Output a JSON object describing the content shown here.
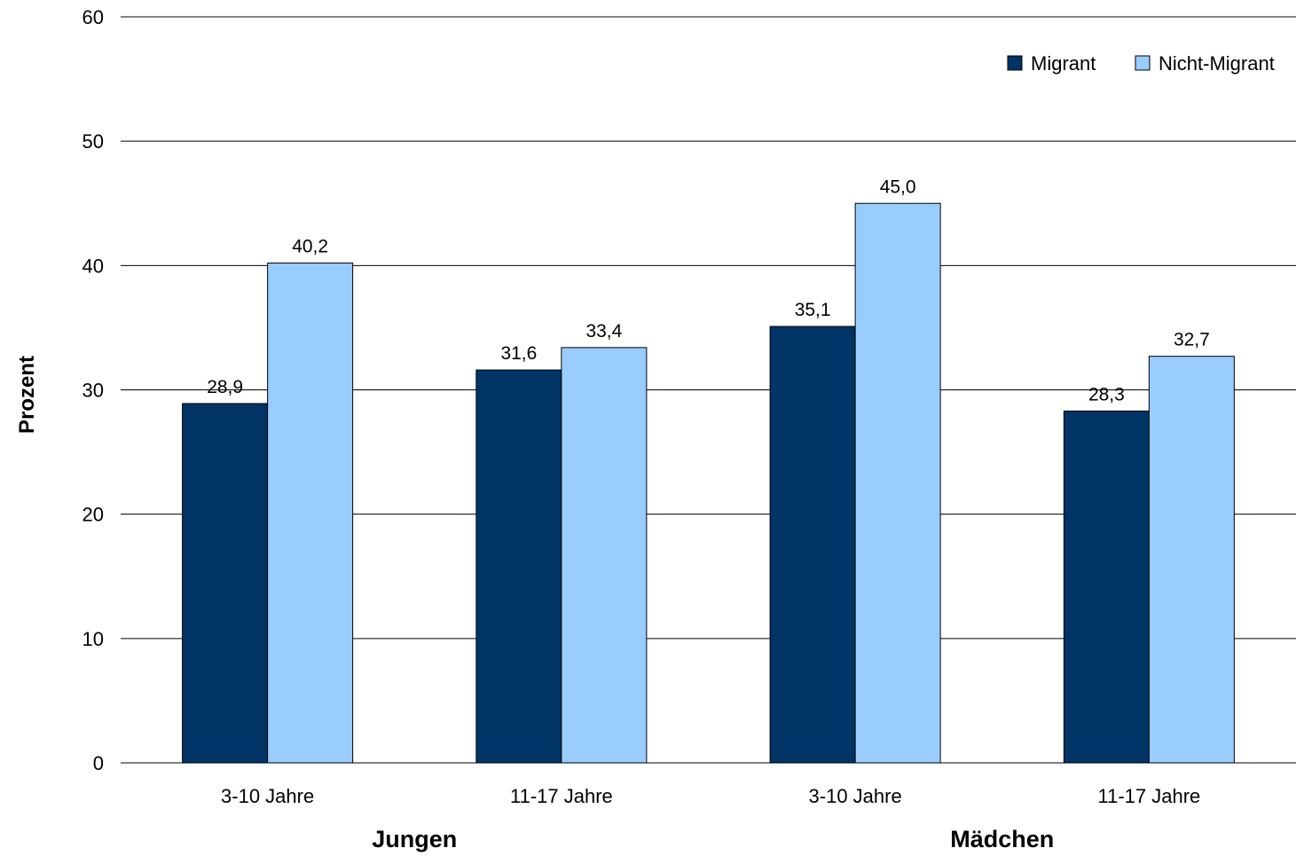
{
  "chart_data": {
    "type": "bar",
    "categories": [
      "3-10 Jahre",
      "11-17 Jahre",
      "3-10 Jahre",
      "11-17 Jahre"
    ],
    "groups": [
      {
        "label": "Jungen",
        "categories": [
          0,
          1
        ]
      },
      {
        "label": "Mädchen",
        "categories": [
          2,
          3
        ]
      }
    ],
    "series": [
      {
        "name": "Migrant",
        "values": [
          28.9,
          31.6,
          35.1,
          28.3
        ],
        "labels": [
          "28,9",
          "31,6",
          "35,1",
          "28,3"
        ],
        "color": "#003366"
      },
      {
        "name": "Nicht-Migrant",
        "values": [
          40.2,
          33.4,
          45.0,
          32.7
        ],
        "labels": [
          "40,2",
          "33,4",
          "45,0",
          "32,7"
        ],
        "color": "#99ccff"
      }
    ],
    "ylabel": "Prozent",
    "ylim": [
      0,
      60
    ],
    "yticks": [
      0,
      10,
      20,
      30,
      40,
      50,
      60
    ],
    "grid": true,
    "legend": "top-right"
  }
}
